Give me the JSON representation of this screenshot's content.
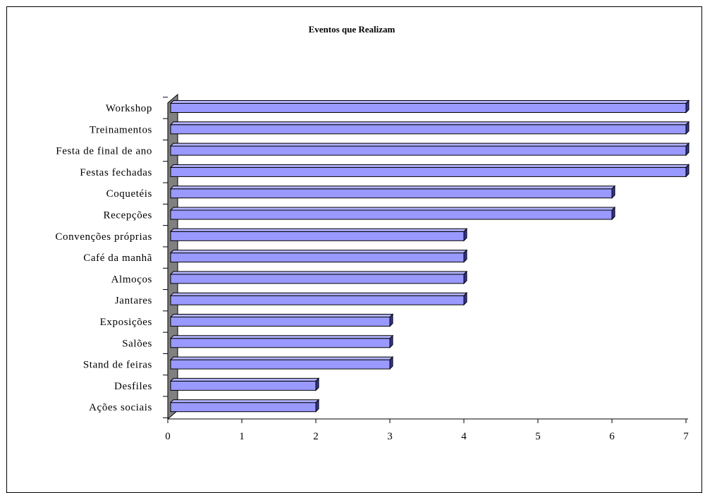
{
  "chart_data": {
    "type": "bar",
    "orientation": "horizontal",
    "style": "3d",
    "title": "Eventos que Realizam",
    "xlabel": "",
    "ylabel": "",
    "categories": [
      "Workshop",
      "Treinamentos",
      "Festa de final de ano",
      "Festas fechadas",
      "Coquetéis",
      "Recepções",
      "Convenções próprias",
      "Café da manhã",
      "Almoços",
      "Jantares",
      "Exposições",
      "Salões",
      "Stand de feiras",
      "Desfiles",
      "Ações sociais"
    ],
    "values": [
      7,
      7,
      7,
      7,
      6,
      6,
      4,
      4,
      4,
      4,
      3,
      3,
      3,
      2,
      2
    ],
    "xlim": [
      0,
      7
    ],
    "xticks": [
      "0",
      "1",
      "2",
      "3",
      "4",
      "5",
      "6",
      "7"
    ],
    "grid": false,
    "legend": "none",
    "colors": {
      "bar_front": "#9999ff",
      "bar_top": "#b3b3ff",
      "bar_side": "#333399",
      "bar_stroke": "#000000",
      "wall": "#808080"
    }
  }
}
